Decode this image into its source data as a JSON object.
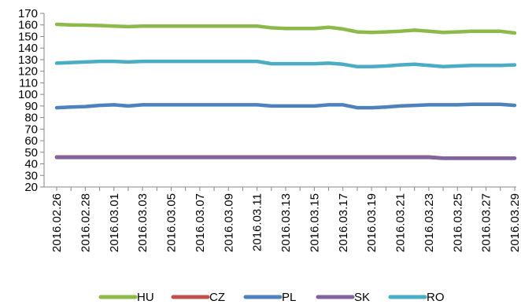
{
  "chart_data": {
    "type": "line",
    "title": "",
    "xlabel": "",
    "ylabel": "",
    "ylim": [
      20,
      170
    ],
    "yticks": [
      20,
      30,
      40,
      50,
      60,
      70,
      80,
      90,
      100,
      110,
      120,
      130,
      140,
      150,
      160,
      170
    ],
    "grid": false,
    "legend_position": "bottom",
    "x": [
      "2016.02.26",
      "2016.02.27",
      "2016.02.28",
      "2016.02.29",
      "2016.03.01",
      "2016.03.02",
      "2016.03.03",
      "2016.03.04",
      "2016.03.05",
      "2016.03.06",
      "2016.03.07",
      "2016.03.08",
      "2016.03.09",
      "2016.03.10",
      "2016.03.11",
      "2016.03.12",
      "2016.03.13",
      "2016.03.14",
      "2016.03.15",
      "2016.03.16",
      "2016.03.17",
      "2016.03.18",
      "2016.03.19",
      "2016.03.20",
      "2016.03.21",
      "2016.03.22",
      "2016.03.23",
      "2016.03.24",
      "2016.03.25",
      "2016.03.26",
      "2016.03.27",
      "2016.03.28",
      "2016.03.29"
    ],
    "xtick_labels": [
      "2016.02.26",
      "2016.02.28",
      "2016.03.01",
      "2016.03.03",
      "2016.03.05",
      "2016.03.07",
      "2016.03.09",
      "2016.03.11",
      "2016.03.13",
      "2016.03.15",
      "2016.03.17",
      "2016.03.19",
      "2016.03.21",
      "2016.03.23",
      "2016.03.25",
      "2016.03.27",
      "2016.03.29"
    ],
    "series": [
      {
        "name": "HU",
        "color": "#8DB94B",
        "values": [
          160.5,
          160,
          159.8,
          159.5,
          159,
          158.5,
          159,
          159,
          159,
          159,
          159,
          159,
          159,
          159,
          159,
          157.5,
          157,
          157,
          157,
          158,
          156.5,
          154,
          153.5,
          154,
          154.5,
          155.5,
          154.5,
          153.5,
          154,
          154.5,
          154.5,
          154.5,
          153
        ]
      },
      {
        "name": "CZ",
        "color": "#C0504D",
        "values": [
          46,
          46,
          46,
          46,
          46,
          46,
          46,
          46,
          46,
          46,
          46,
          46,
          46,
          46,
          46,
          46,
          46,
          46,
          46,
          46,
          46,
          46,
          46,
          46,
          46,
          46,
          46,
          45,
          45,
          45,
          45,
          45,
          45
        ]
      },
      {
        "name": "PL",
        "color": "#4F81BD",
        "values": [
          88.5,
          89,
          89.5,
          90.5,
          91,
          90,
          91,
          91,
          91,
          91,
          91,
          91,
          91,
          91,
          91,
          90,
          90,
          90,
          90,
          91,
          91,
          88.5,
          88.5,
          89,
          90,
          90.5,
          91,
          91,
          91,
          91.5,
          91.5,
          91.5,
          90.5
        ]
      },
      {
        "name": "SK",
        "color": "#8064A2",
        "values": [
          45.5,
          45.5,
          45.5,
          45.5,
          45.5,
          45.5,
          45.5,
          45.5,
          45.5,
          45.5,
          45.5,
          45.5,
          45.5,
          45.5,
          45.5,
          45.5,
          45.5,
          45.5,
          45.5,
          45.5,
          45.5,
          45.5,
          45.5,
          45.5,
          45.5,
          45.5,
          45.5,
          44.8,
          44.8,
          44.8,
          44.8,
          44.8,
          44.8
        ]
      },
      {
        "name": "RO",
        "color": "#4BACC6",
        "values": [
          127,
          127.5,
          128,
          128.5,
          128.5,
          128,
          128.5,
          128.5,
          128.5,
          128.5,
          128.5,
          128.5,
          128.5,
          128.5,
          128.5,
          126.5,
          126.5,
          126.5,
          126.5,
          127,
          126,
          124,
          124,
          124.5,
          125.5,
          126,
          125,
          124,
          124.5,
          125,
          125,
          125,
          125.5
        ]
      }
    ]
  }
}
